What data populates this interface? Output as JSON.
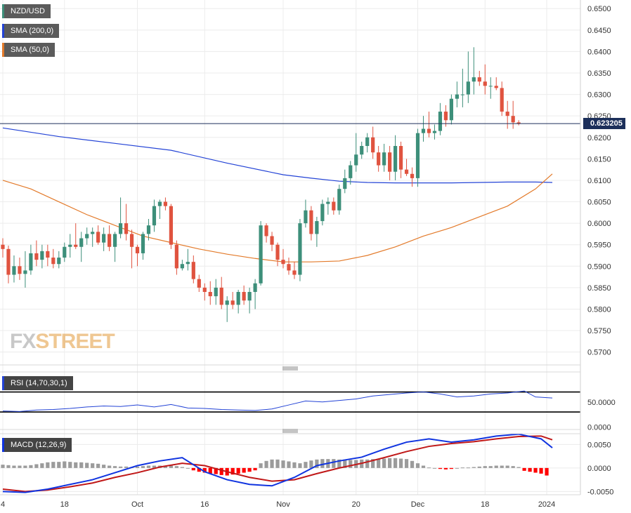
{
  "legend": {
    "pair": "NZD/USD",
    "sma200": "SMA (200,0)",
    "sma50": "SMA (50,0)",
    "rsi": "RSI (14,70,30,1)",
    "macd": "MACD (12,26,9)"
  },
  "logo": {
    "part1": "FX",
    "part2": "STREET"
  },
  "current_price": "0.623205",
  "colors": {
    "up": "#3d8f7a",
    "down": "#e0533f",
    "sma200": "#2343d6",
    "sma50": "#e37a2a",
    "rsi": "#2343d6",
    "macd_line": "#1034e0",
    "signal_line": "#c01818",
    "hist_pos": "#9b9b9b",
    "hist_neg": "#ff0000",
    "price_line": "#1c2f5a"
  },
  "chart_data": [
    {
      "type": "candlestick",
      "title": "",
      "y_ticks": [
        "0.6500",
        "0.6450",
        "0.6400",
        "0.6350",
        "0.6300",
        "0.6250",
        "0.6200",
        "0.6150",
        "0.6100",
        "0.6050",
        "0.6000",
        "0.5950",
        "0.5900",
        "0.5850",
        "0.5800",
        "0.5750",
        "0.5700"
      ],
      "ylim": [
        0.567,
        0.652
      ],
      "x_ticks": [
        {
          "label": "4",
          "index": 0
        },
        {
          "label": "18",
          "index": 11
        },
        {
          "label": "Oct",
          "index": 24
        },
        {
          "label": "16",
          "index": 36
        },
        {
          "label": "Nov",
          "index": 50
        },
        {
          "label": "20",
          "index": 63
        },
        {
          "label": "Dec",
          "index": 74
        },
        {
          "label": "18",
          "index": 86
        },
        {
          "label": "2024",
          "index": 97
        }
      ],
      "candles": [
        [
          0.595,
          0.5965,
          0.592,
          0.594
        ],
        [
          0.594,
          0.5948,
          0.586,
          0.588
        ],
        [
          0.588,
          0.5925,
          0.5862,
          0.59
        ],
        [
          0.59,
          0.592,
          0.5868,
          0.5882
        ],
        [
          0.5882,
          0.5935,
          0.585,
          0.589
        ],
        [
          0.589,
          0.595,
          0.588,
          0.593
        ],
        [
          0.593,
          0.596,
          0.59,
          0.5915
        ],
        [
          0.5915,
          0.595,
          0.5895,
          0.5935
        ],
        [
          0.5935,
          0.595,
          0.59,
          0.592
        ],
        [
          0.592,
          0.594,
          0.5895,
          0.5905
        ],
        [
          0.5905,
          0.5935,
          0.5895,
          0.592
        ],
        [
          0.592,
          0.5955,
          0.591,
          0.5945
        ],
        [
          0.5945,
          0.5975,
          0.592,
          0.595
        ],
        [
          0.595,
          0.6,
          0.594,
          0.5945
        ],
        [
          0.5945,
          0.598,
          0.591,
          0.5965
        ],
        [
          0.5965,
          0.599,
          0.595,
          0.5975
        ],
        [
          0.5975,
          0.599,
          0.5945,
          0.598
        ],
        [
          0.598,
          0.5995,
          0.595,
          0.5955
        ],
        [
          0.5955,
          0.599,
          0.5935,
          0.5975
        ],
        [
          0.5975,
          0.5995,
          0.5935,
          0.5945
        ],
        [
          0.5945,
          0.598,
          0.591,
          0.5975
        ],
        [
          0.5975,
          0.606,
          0.5965,
          0.6
        ],
        [
          0.6,
          0.6045,
          0.596,
          0.5975
        ],
        [
          0.5975,
          0.5985,
          0.5895,
          0.5945
        ],
        [
          0.5945,
          0.595,
          0.59,
          0.593
        ],
        [
          0.593,
          0.598,
          0.5915,
          0.5975
        ],
        [
          0.5975,
          0.601,
          0.596,
          0.5995
        ],
        [
          0.5995,
          0.6055,
          0.598,
          0.604
        ],
        [
          0.604,
          0.6055,
          0.601,
          0.605
        ],
        [
          0.605,
          0.606,
          0.603,
          0.604
        ],
        [
          0.604,
          0.6045,
          0.594,
          0.595
        ],
        [
          0.595,
          0.596,
          0.588,
          0.5895
        ],
        [
          0.5895,
          0.5915,
          0.589,
          0.5905
        ],
        [
          0.5905,
          0.594,
          0.589,
          0.591
        ],
        [
          0.591,
          0.5925,
          0.586,
          0.587
        ],
        [
          0.587,
          0.588,
          0.584,
          0.585
        ],
        [
          0.585,
          0.586,
          0.582,
          0.584
        ],
        [
          0.584,
          0.5865,
          0.581,
          0.583
        ],
        [
          0.583,
          0.587,
          0.581,
          0.585
        ],
        [
          0.585,
          0.5875,
          0.58,
          0.581
        ],
        [
          0.581,
          0.583,
          0.577,
          0.582
        ],
        [
          0.582,
          0.584,
          0.58,
          0.581
        ],
        [
          0.581,
          0.5845,
          0.579,
          0.584
        ],
        [
          0.584,
          0.5855,
          0.581,
          0.582
        ],
        [
          0.582,
          0.585,
          0.579,
          0.584
        ],
        [
          0.584,
          0.587,
          0.58,
          0.586
        ],
        [
          0.586,
          0.6005,
          0.5855,
          0.5995
        ],
        [
          0.5995,
          0.6,
          0.5955,
          0.597
        ],
        [
          0.597,
          0.598,
          0.5935,
          0.595
        ],
        [
          0.595,
          0.5955,
          0.59,
          0.5915
        ],
        [
          0.5915,
          0.594,
          0.5895,
          0.5905
        ],
        [
          0.5905,
          0.592,
          0.588,
          0.589
        ],
        [
          0.589,
          0.591,
          0.587,
          0.588
        ],
        [
          0.588,
          0.601,
          0.5865,
          0.6
        ],
        [
          0.6,
          0.6055,
          0.599,
          0.603
        ],
        [
          0.603,
          0.604,
          0.596,
          0.5975
        ],
        [
          0.5975,
          0.6015,
          0.5945,
          0.6005
        ],
        [
          0.6005,
          0.6055,
          0.5995,
          0.6045
        ],
        [
          0.6045,
          0.606,
          0.602,
          0.605
        ],
        [
          0.605,
          0.606,
          0.602,
          0.603
        ],
        [
          0.603,
          0.609,
          0.602,
          0.608
        ],
        [
          0.608,
          0.6125,
          0.607,
          0.6105
        ],
        [
          0.6105,
          0.6145,
          0.609,
          0.6135
        ],
        [
          0.6135,
          0.621,
          0.612,
          0.616
        ],
        [
          0.616,
          0.619,
          0.615,
          0.618
        ],
        [
          0.618,
          0.621,
          0.6165,
          0.62
        ],
        [
          0.62,
          0.6225,
          0.615,
          0.6165
        ],
        [
          0.6165,
          0.618,
          0.612,
          0.6135
        ],
        [
          0.6135,
          0.6185,
          0.612,
          0.6165
        ],
        [
          0.6165,
          0.618,
          0.61,
          0.612
        ],
        [
          0.612,
          0.6205,
          0.61,
          0.618
        ],
        [
          0.618,
          0.619,
          0.6105,
          0.6125
        ],
        [
          0.6125,
          0.615,
          0.611,
          0.6115
        ],
        [
          0.6115,
          0.613,
          0.6085,
          0.6105
        ],
        [
          0.6105,
          0.622,
          0.6085,
          0.621
        ],
        [
          0.621,
          0.625,
          0.619,
          0.622
        ],
        [
          0.622,
          0.626,
          0.62,
          0.621
        ],
        [
          0.621,
          0.623,
          0.6195,
          0.6215
        ],
        [
          0.6215,
          0.628,
          0.6205,
          0.626
        ],
        [
          0.626,
          0.6275,
          0.6225,
          0.624
        ],
        [
          0.624,
          0.63,
          0.623,
          0.629
        ],
        [
          0.629,
          0.633,
          0.627,
          0.63
        ],
        [
          0.63,
          0.636,
          0.627,
          0.63
        ],
        [
          0.63,
          0.64,
          0.628,
          0.633
        ],
        [
          0.633,
          0.641,
          0.63,
          0.634
        ],
        [
          0.634,
          0.6355,
          0.632,
          0.633
        ],
        [
          0.633,
          0.637,
          0.63,
          0.632
        ],
        [
          0.632,
          0.634,
          0.629,
          0.632
        ],
        [
          0.632,
          0.634,
          0.631,
          0.6315
        ],
        [
          0.6315,
          0.633,
          0.625,
          0.626
        ],
        [
          0.626,
          0.6285,
          0.622,
          0.625
        ],
        [
          0.625,
          0.6285,
          0.622,
          0.6235
        ],
        [
          0.6235,
          0.624,
          0.6228,
          0.6232
        ]
      ],
      "sma200": {
        "x": [
          0,
          10,
          20,
          30,
          40,
          50,
          55,
          60,
          65,
          70,
          75,
          80,
          85,
          90,
          95,
          98
        ],
        "y": [
          0.6222,
          0.6202,
          0.6186,
          0.617,
          0.614,
          0.6113,
          0.6105,
          0.6098,
          0.6095,
          0.6094,
          0.6094,
          0.6094,
          0.6095,
          0.6096,
          0.6096,
          0.6095
        ]
      },
      "sma50": {
        "x": [
          0,
          5,
          10,
          15,
          20,
          25,
          30,
          35,
          40,
          45,
          50,
          55,
          60,
          65,
          70,
          75,
          80,
          85,
          90,
          95,
          98
        ],
        "y": [
          0.61,
          0.608,
          0.605,
          0.602,
          0.5995,
          0.597,
          0.5955,
          0.594,
          0.5928,
          0.5918,
          0.591,
          0.591,
          0.5912,
          0.5925,
          0.5945,
          0.597,
          0.599,
          0.6015,
          0.604,
          0.608,
          0.6115
        ]
      },
      "current_price": 0.623205
    },
    {
      "type": "line",
      "title": "",
      "y_ticks": [
        "50.0000",
        "0.0000"
      ],
      "ylim": [
        -5,
        110
      ],
      "levels": [
        70,
        30
      ],
      "x": [
        0,
        3,
        6,
        9,
        12,
        15,
        18,
        21,
        24,
        27,
        30,
        33,
        36,
        39,
        42,
        45,
        48,
        51,
        54,
        57,
        60,
        63,
        66,
        69,
        72,
        75,
        78,
        81,
        84,
        87,
        90,
        93,
        95,
        98
      ],
      "values": [
        32,
        31,
        34,
        35,
        37,
        40,
        42,
        41,
        44,
        40,
        45,
        38,
        37,
        35,
        34,
        33,
        36,
        44,
        52,
        50,
        53,
        56,
        62,
        65,
        68,
        70,
        66,
        60,
        62,
        66,
        68,
        72,
        60,
        58
      ]
    },
    {
      "type": "line",
      "title": "",
      "y_ticks": [
        "0.0050",
        "0.0000",
        "-0.0050"
      ],
      "ylim": [
        -0.0057,
        0.0073
      ],
      "macd": {
        "x": [
          0,
          4,
          8,
          12,
          16,
          20,
          24,
          28,
          32,
          36,
          40,
          44,
          48,
          52,
          56,
          60,
          64,
          68,
          72,
          76,
          80,
          84,
          88,
          92,
          96,
          98
        ],
        "y": [
          -0.005,
          -0.0052,
          -0.0045,
          -0.0035,
          -0.0025,
          -0.001,
          0.0005,
          0.0015,
          0.0022,
          -0.0008,
          -0.0025,
          -0.0035,
          -0.0038,
          -0.002,
          0.0005,
          0.0015,
          0.0023,
          0.004,
          0.0055,
          0.0062,
          0.0055,
          0.006,
          0.0068,
          0.0072,
          0.0062,
          0.0043
        ]
      },
      "signal": {
        "x": [
          0,
          4,
          8,
          12,
          16,
          20,
          24,
          28,
          32,
          36,
          40,
          44,
          48,
          52,
          56,
          60,
          64,
          68,
          72,
          76,
          80,
          84,
          88,
          92,
          96,
          98
        ],
        "y": [
          -0.0045,
          -0.005,
          -0.0047,
          -0.004,
          -0.0032,
          -0.002,
          -0.001,
          0.0002,
          0.001,
          0.0005,
          -0.0008,
          -0.002,
          -0.0028,
          -0.0025,
          -0.0012,
          0.0,
          0.001,
          0.0022,
          0.0035,
          0.0046,
          0.0052,
          0.0056,
          0.0062,
          0.0067,
          0.0068,
          0.006
        ]
      },
      "histogram": [
        0.0007,
        0.0006,
        0.0005,
        0.0005,
        0.0005,
        0.0006,
        0.0008,
        0.001,
        0.0012,
        0.0013,
        0.0013,
        0.0014,
        0.0013,
        0.0012,
        0.0012,
        0.0011,
        0.001,
        0.0009,
        0.0007,
        0.0005,
        0.0004,
        0.0003,
        0.0003,
        0.0002,
        0.0003,
        0.0004,
        0.0005,
        0.0005,
        0.0005,
        0.0005,
        0.0005,
        0.0004,
        0.0002,
        0.0,
        -0.0005,
        -0.0008,
        -0.001,
        -0.0012,
        -0.0013,
        -0.0015,
        -0.0016,
        -0.0014,
        -0.0012,
        -0.001,
        -0.0008,
        -0.0005,
        0.001,
        0.0015,
        0.0018,
        0.0018,
        0.0016,
        0.0014,
        0.0012,
        0.001,
        0.0013,
        0.0016,
        0.0018,
        0.0019,
        0.0019,
        0.0019,
        0.0018,
        0.0018,
        0.0017,
        0.0017,
        0.0018,
        0.0018,
        0.0019,
        0.0019,
        0.002,
        0.0021,
        0.0021,
        0.002,
        0.0019,
        0.0015,
        0.001,
        0.0005,
        0.0001,
        0.0,
        -0.0002,
        -0.0003,
        -0.0002,
        0.0,
        0.0001,
        0.0001,
        0.0002,
        0.0003,
        0.0004,
        0.0004,
        0.0005,
        0.0005,
        0.0005,
        0.0004,
        0.0002,
        -0.0006,
        -0.0008,
        -0.001,
        -0.0012,
        -0.0016
      ]
    }
  ]
}
